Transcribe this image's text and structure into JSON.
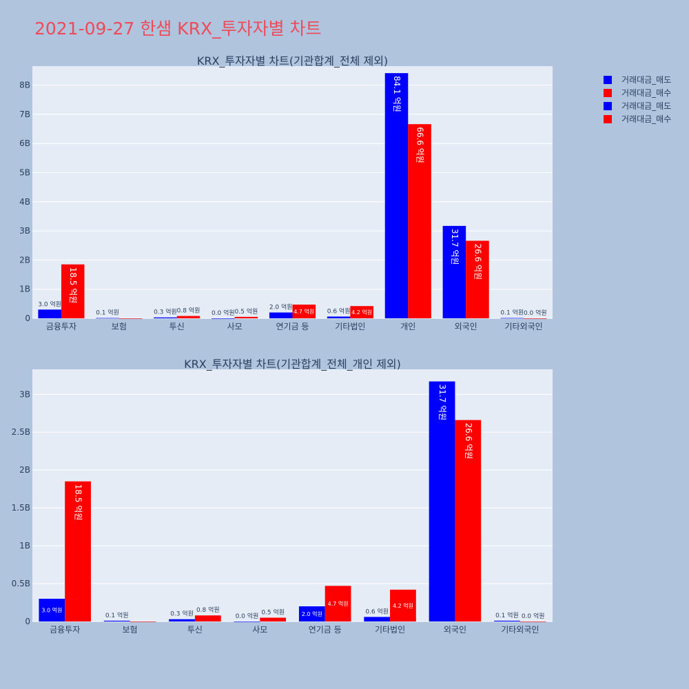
{
  "page": {
    "title": "2021-09-27 한샘 KRX_투자자별 차트",
    "background": "#b0c4de",
    "title_color": "#ee4b5a"
  },
  "colors": {
    "plot_bg": "#e5ecf6",
    "sell": "#0000ff",
    "buy": "#ff0000",
    "axis_text": "#2a3f5f",
    "grid": "#ffffff"
  },
  "legend": {
    "placement": "top-right",
    "items": [
      {
        "label": "거래대금_매도",
        "color": "#0000ff"
      },
      {
        "label": "거래대금_매수",
        "color": "#ff0000"
      },
      {
        "label": "거래대금_매도",
        "color": "#0000ff"
      },
      {
        "label": "거래대금_매수",
        "color": "#ff0000"
      }
    ]
  },
  "chart_data": [
    {
      "type": "bar",
      "title": "KRX_투자자별 차트(기관합계_전체 제외)",
      "categories": [
        "금융투자",
        "보험",
        "투신",
        "사모",
        "연기금 등",
        "기타법인",
        "개인",
        "외국인",
        "기타외국인"
      ],
      "series": [
        {
          "name": "거래대금_매도",
          "values": [
            300000000,
            10000000,
            30000000,
            0,
            200000000,
            60000000,
            8410000000,
            3170000000,
            10000000
          ],
          "labels": [
            "3.0 억원",
            "0.1 억원",
            "0.3 억원",
            "0.0 억원",
            "2.0 억원",
            "0.6 억원",
            "84.1 억원",
            "31.7 억원",
            "0.1 억원"
          ]
        },
        {
          "name": "거래대금_매수",
          "values": [
            1850000000,
            0,
            80000000,
            50000000,
            470000000,
            420000000,
            6660000000,
            2660000000,
            0
          ],
          "labels": [
            "18.5 억원",
            "",
            "0.8 억원",
            "0.5 억원",
            "4.7 억원",
            "4.2 억원",
            "66.6 억원",
            "26.6 억원",
            "0.0 억원"
          ]
        }
      ],
      "ylim": [
        0,
        8650000000
      ],
      "yticks": [
        0,
        1000000000,
        2000000000,
        3000000000,
        4000000000,
        5000000000,
        6000000000,
        7000000000,
        8000000000
      ],
      "ytick_labels": [
        "0",
        "1B",
        "2B",
        "3B",
        "4B",
        "5B",
        "6B",
        "7B",
        "8B"
      ],
      "grid": true
    },
    {
      "type": "bar",
      "title": "KRX_투자자별 차트(기관합계_전체_개인 제외)",
      "categories": [
        "금융투자",
        "보험",
        "투신",
        "사모",
        "연기금 등",
        "기타법인",
        "외국인",
        "기타외국인"
      ],
      "series": [
        {
          "name": "거래대금_매도",
          "values": [
            300000000,
            10000000,
            30000000,
            0,
            200000000,
            60000000,
            3170000000,
            10000000
          ],
          "labels": [
            "3.0 억원",
            "0.1 억원",
            "0.3 억원",
            "0.0 억원",
            "2.0 억원",
            "0.6 억원",
            "31.7 억원",
            "0.1 억원"
          ]
        },
        {
          "name": "거래대금_매수",
          "values": [
            1850000000,
            0,
            80000000,
            50000000,
            470000000,
            420000000,
            2660000000,
            0
          ],
          "labels": [
            "18.5 억원",
            "",
            "0.8 억원",
            "0.5 억원",
            "4.7 억원",
            "4.2 억원",
            "26.6 억원",
            "0.0 억원"
          ]
        }
      ],
      "ylim": [
        0,
        3330000000
      ],
      "yticks": [
        0,
        500000000,
        1000000000,
        1500000000,
        2000000000,
        2500000000,
        3000000000
      ],
      "ytick_labels": [
        "0",
        "0.5B",
        "1B",
        "1.5B",
        "2B",
        "2.5B",
        "3B"
      ],
      "grid": true
    }
  ]
}
